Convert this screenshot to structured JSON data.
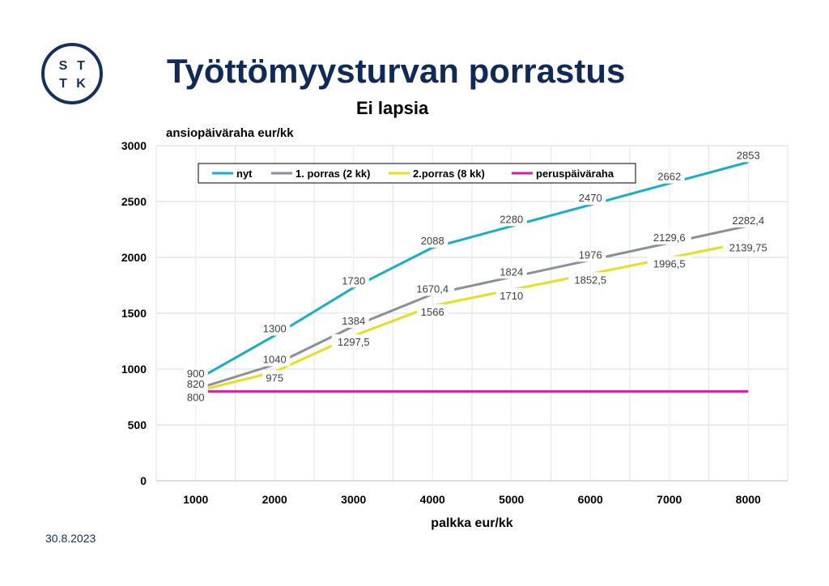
{
  "logo": {
    "letters": [
      "S",
      "T",
      "T",
      "K"
    ],
    "color": "#15315b"
  },
  "title": "Työttömyysturvan porrastus",
  "footer": {
    "date": "30.8.2023"
  },
  "chart_data": {
    "type": "line",
    "title": "Ei lapsia",
    "ylabel": "ansiopäiväraha eur/kk",
    "xlabel": "palkka eur/kk",
    "categories": [
      1000,
      2000,
      3000,
      4000,
      5000,
      6000,
      7000,
      8000
    ],
    "ylim": [
      0,
      3000
    ],
    "yticks": [
      "0",
      "500",
      "1000",
      "1500",
      "2000",
      "2500",
      "3000"
    ],
    "xticks": [
      "1000",
      "2000",
      "3000",
      "4000",
      "5000",
      "6000",
      "7000",
      "8000"
    ],
    "grid": true,
    "legend_placement": "top-left",
    "series": [
      {
        "name": "nyt",
        "color": "#1aaec3",
        "values": [
          900,
          1300,
          1730,
          2088,
          2280,
          2470,
          2662,
          2853
        ],
        "labels": [
          "900",
          "1300",
          "1730",
          "2088",
          "2280",
          "2470",
          "2662",
          "2853"
        ]
      },
      {
        "name": "1. porras (2 kk)",
        "color": "#8a9099",
        "values": [
          820,
          1040,
          1384,
          1670.4,
          1824,
          1976,
          2129.6,
          2282.4
        ],
        "labels": [
          "820",
          "1040",
          "1384",
          "1670,4",
          "1824",
          "1976",
          "2129,6",
          "2282,4"
        ]
      },
      {
        "name": "2.porras (8 kk)",
        "color": "#e3e020",
        "values": [
          800,
          975,
          1297.5,
          1566,
          1710,
          1852.5,
          1996.5,
          2139.75
        ],
        "labels": [
          "800",
          "975",
          "1297,5",
          "1566",
          "1710",
          "1852,5",
          "1996,5",
          "2139,75"
        ]
      },
      {
        "name": "peruspäiväraha",
        "color": "#d81fa6",
        "values": [
          800,
          800,
          800,
          800,
          800,
          800,
          800,
          800
        ],
        "labels": []
      }
    ]
  }
}
